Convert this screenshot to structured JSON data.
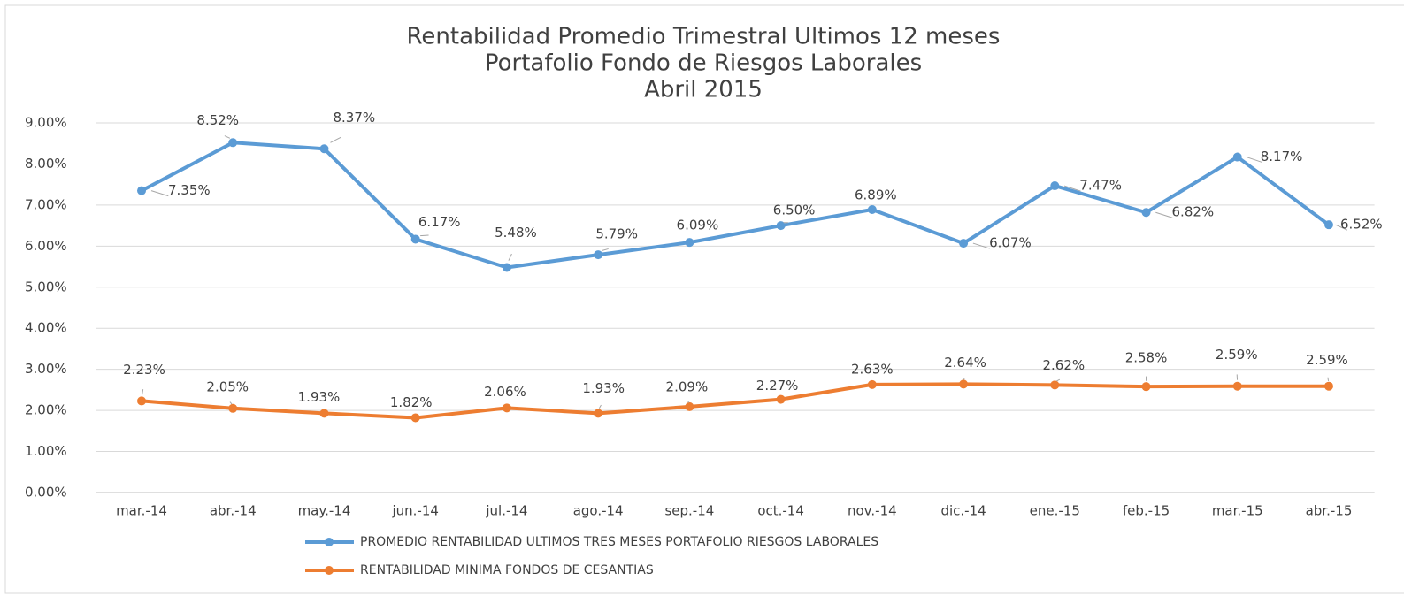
{
  "chart_data": {
    "type": "line",
    "title": [
      "Rentabilidad Promedio Trimestral Ultimos 12 meses",
      "Portafolio Fondo de Riesgos Laborales",
      "Abril 2015"
    ],
    "categories": [
      "mar.-14",
      "abr.-14",
      "may.-14",
      "jun.-14",
      "jul.-14",
      "ago.-14",
      "sep.-14",
      "oct.-14",
      "nov.-14",
      "dic.-14",
      "ene.-15",
      "feb.-15",
      "mar.-15",
      "abr.-15"
    ],
    "series": [
      {
        "name": "PROMEDIO RENTABILIDAD ULTIMOS TRES MESES PORTAFOLIO RIESGOS LABORALES",
        "color": "#5b9bd5",
        "values": [
          7.35,
          8.52,
          8.37,
          6.17,
          5.48,
          5.79,
          6.09,
          6.5,
          6.89,
          6.07,
          7.47,
          6.82,
          8.17,
          6.52
        ],
        "value_labels": [
          "7.35%",
          "8.52%",
          "8.37%",
          "6.17%",
          "5.48%",
          "5.79%",
          "6.09%",
          "6.50%",
          "6.89%",
          "6.07%",
          "7.47%",
          "6.82%",
          "8.17%",
          "6.52%"
        ]
      },
      {
        "name": "RENTABILIDAD MINIMA FONDOS DE CESANTIAS",
        "color": "#ed7d31",
        "values": [
          2.23,
          2.05,
          1.93,
          1.82,
          2.06,
          1.93,
          2.09,
          2.27,
          2.63,
          2.64,
          2.62,
          2.58,
          2.59,
          2.59
        ],
        "value_labels": [
          "2.23%",
          "2.05%",
          "1.93%",
          "1.82%",
          "2.06%",
          "1.93%",
          "2.09%",
          "2.27%",
          "2.63%",
          "2.64%",
          "2.62%",
          "2.58%",
          "2.59%",
          "2.59%"
        ]
      }
    ],
    "ylim": [
      0,
      9
    ],
    "yticks": [
      {
        "value": 0,
        "label": "0.00%"
      },
      {
        "value": 1,
        "label": "1.00%"
      },
      {
        "value": 2,
        "label": "2.00%"
      },
      {
        "value": 3,
        "label": "3.00%"
      },
      {
        "value": 4,
        "label": "4.00%"
      },
      {
        "value": 5,
        "label": "5.00%"
      },
      {
        "value": 6,
        "label": "6.00%"
      },
      {
        "value": 7,
        "label": "7.00%"
      },
      {
        "value": 8,
        "label": "8.00%"
      },
      {
        "value": 9,
        "label": "9.00%"
      }
    ],
    "grid": true
  }
}
